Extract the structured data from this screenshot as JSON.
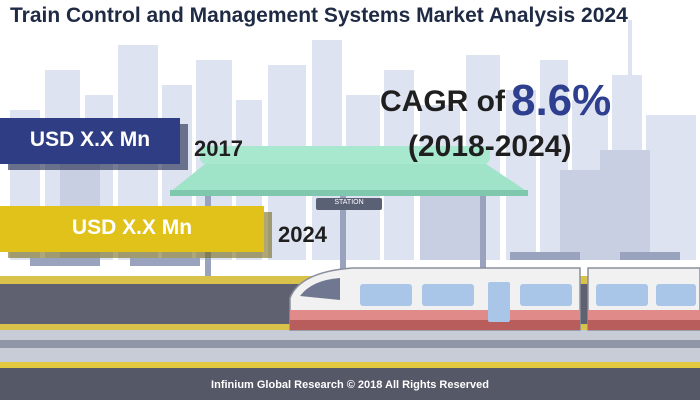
{
  "title": "Train Control and Management Systems Market Analysis 2024",
  "cagr": {
    "prefix": "CAGR of",
    "value": "8.6%",
    "period": "(2018-2024)"
  },
  "station_sign": "STATION",
  "footer": "Infinium Global Research © 2018 All Rights Reserved",
  "colors": {
    "bar_2017": "#2e3d84",
    "bar_2024": "#e0c21a",
    "cagr_value": "#2f3f8f",
    "title": "#1f2a44"
  },
  "chart_data": {
    "type": "bar",
    "orientation": "horizontal",
    "categories": [
      "2017",
      "2024"
    ],
    "value_labels": [
      "USD X.X Mn",
      "USD X.X Mn"
    ],
    "colors": [
      "#2e3d84",
      "#e0c21a"
    ]
  }
}
